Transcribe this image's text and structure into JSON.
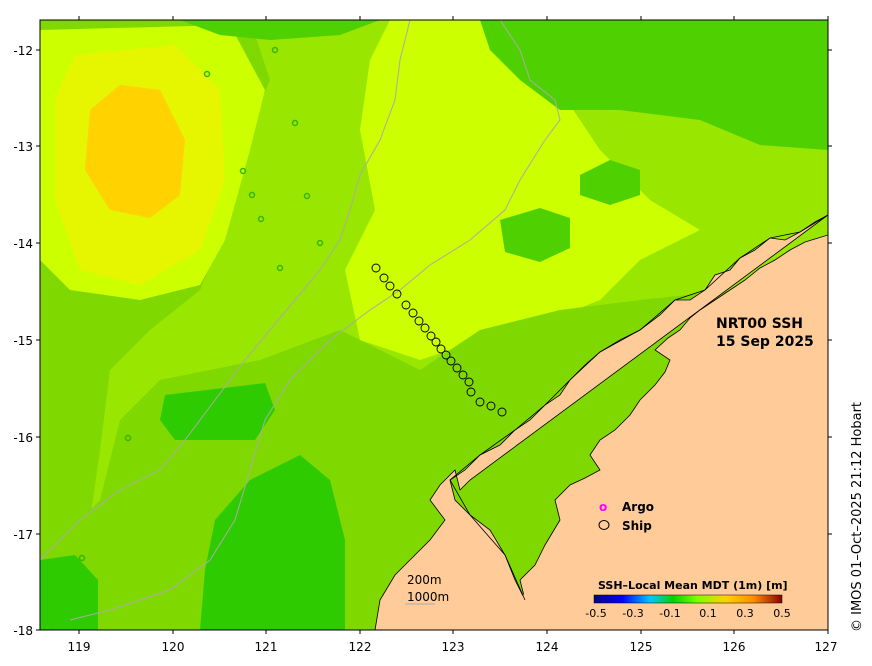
{
  "map": {
    "title_line1": "NRT00 SSH",
    "title_line2": "15 Sep 2025",
    "credit": "© IMOS 01–Oct–2025 21:12 Hobart",
    "longitude_ticks": [
      "119",
      "120",
      "121",
      "122",
      "123",
      "124",
      "125",
      "126",
      "127"
    ],
    "latitude_ticks": [
      "-12",
      "-13",
      "-14",
      "-15",
      "-16",
      "-17",
      "-18"
    ],
    "legend": {
      "argo_marker": "o",
      "argo_label": "Argo",
      "ship_label": "Ship"
    },
    "scale_bar": {
      "label_200": "200m",
      "label_1000": "1000m"
    },
    "colorbar": {
      "title": "SSH–Local Mean MDT (1m) [m]",
      "tick_labels": [
        "-0.5",
        "-0.3",
        "-0.1",
        "0.1",
        "0.3",
        "0.5"
      ],
      "colors": [
        "#00007f",
        "#0000ff",
        "#00c8ff",
        "#00d200",
        "#7fff00",
        "#ffd200",
        "#ff8c00",
        "#8b0000"
      ]
    },
    "colors": {
      "land": "#ffcc99",
      "ship_track": "#000000",
      "bathymetry_contour": "#aaaaaa",
      "argo_marker": "#ff00ff"
    }
  }
}
